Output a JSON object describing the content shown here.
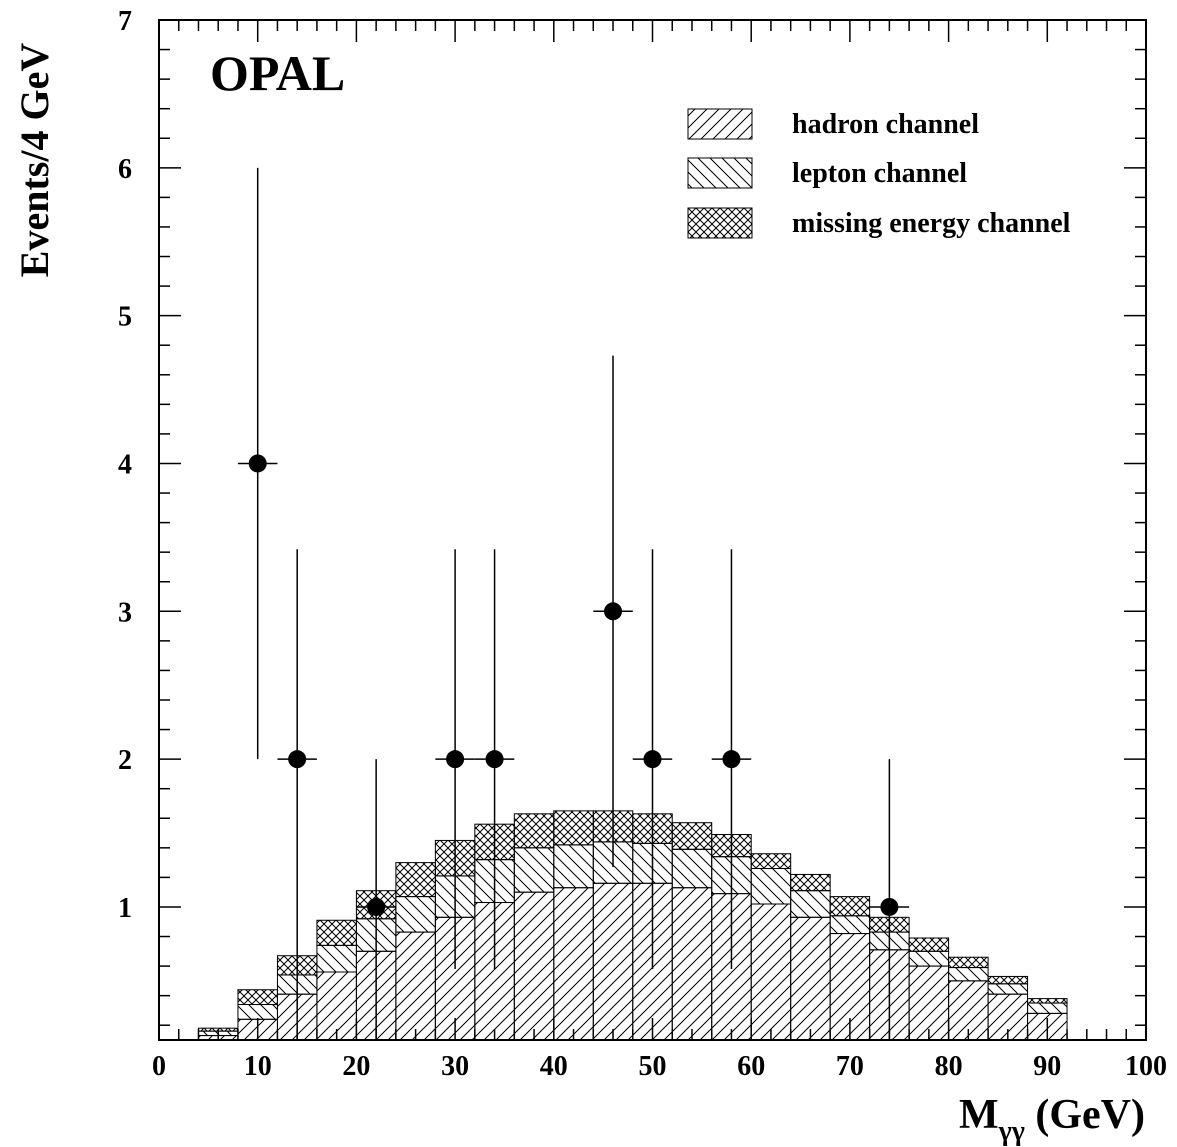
{
  "chart_data": {
    "type": "bar",
    "stacked": true,
    "title": "OPAL",
    "xlabel": "M",
    "xlabel_sub": "γγ",
    "xlabel_unit": " (GeV)",
    "ylabel": "Events/4 GeV",
    "xlim": [
      0,
      100
    ],
    "ylim": [
      0.1,
      7
    ],
    "x_ticks": [
      0,
      10,
      20,
      30,
      40,
      50,
      60,
      70,
      80,
      90,
      100
    ],
    "y_ticks": [
      1,
      2,
      3,
      4,
      5,
      6,
      7
    ],
    "legend_position": "top-right",
    "bin_edges": [
      4,
      8,
      12,
      16,
      20,
      24,
      28,
      32,
      36,
      40,
      44,
      48,
      52,
      56,
      60,
      64,
      68,
      72,
      76,
      80,
      84,
      88,
      92
    ],
    "series": [
      {
        "name": "hadron channel",
        "pattern": "hatch-forward",
        "values": [
          0.13,
          0.24,
          0.41,
          0.56,
          0.7,
          0.83,
          0.93,
          1.03,
          1.1,
          1.13,
          1.16,
          1.16,
          1.13,
          1.09,
          1.02,
          0.93,
          0.82,
          0.71,
          0.6,
          0.5,
          0.41,
          0.28,
          0.13
        ]
      },
      {
        "name": "lepton channel",
        "pattern": "hatch-backward",
        "values": [
          0.03,
          0.1,
          0.13,
          0.18,
          0.22,
          0.24,
          0.28,
          0.29,
          0.3,
          0.29,
          0.28,
          0.27,
          0.26,
          0.25,
          0.24,
          0.18,
          0.12,
          0.12,
          0.1,
          0.09,
          0.07,
          0.07,
          0.04
        ]
      },
      {
        "name": "missing energy channel",
        "pattern": "crosshatch",
        "values": [
          0.02,
          0.1,
          0.13,
          0.17,
          0.19,
          0.23,
          0.24,
          0.24,
          0.23,
          0.23,
          0.21,
          0.2,
          0.18,
          0.15,
          0.1,
          0.11,
          0.13,
          0.1,
          0.09,
          0.07,
          0.05,
          0.03,
          0.02
        ]
      }
    ],
    "data_points": [
      {
        "x": 10,
        "y": 4,
        "y_low": 2.0,
        "y_high": 6.0
      },
      {
        "x": 14,
        "y": 2,
        "y_low": 0.1,
        "y_high": 3.42
      },
      {
        "x": 22,
        "y": 1,
        "y_low": 0.1,
        "y_high": 2.0
      },
      {
        "x": 30,
        "y": 2,
        "y_low": 0.58,
        "y_high": 3.42
      },
      {
        "x": 34,
        "y": 2,
        "y_low": 0.58,
        "y_high": 3.42
      },
      {
        "x": 46,
        "y": 3,
        "y_low": 1.27,
        "y_high": 4.73
      },
      {
        "x": 50,
        "y": 2,
        "y_low": 0.58,
        "y_high": 3.42
      },
      {
        "x": 58,
        "y": 2,
        "y_low": 0.58,
        "y_high": 3.42
      },
      {
        "x": 74,
        "y": 1,
        "y_low": 0.1,
        "y_high": 2.0
      }
    ],
    "x_error_halfwidth": 2
  }
}
